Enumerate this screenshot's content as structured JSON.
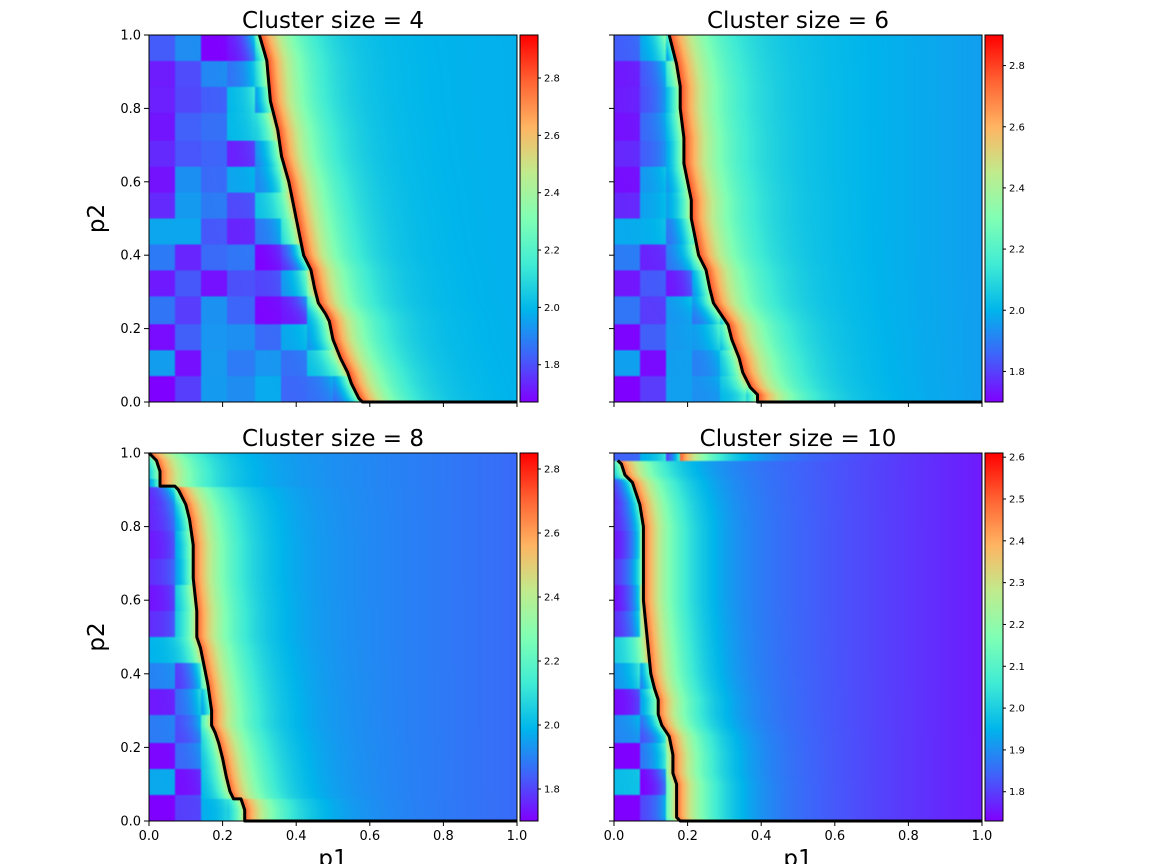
{
  "colormap": "rainbow",
  "colors": {
    "boundary_line": "#000000",
    "cmap_stops": [
      "#8000ff",
      "#4062fa",
      "#00b5eb",
      "#40ecd4",
      "#80ffb4",
      "#c0eb8d",
      "#ffb462",
      "#ff6232",
      "#ff0000"
    ]
  },
  "chart_data": [
    {
      "type": "heatmap",
      "title": "Cluster size = 4",
      "xlabel": "",
      "ylabel": "p2",
      "xlim": [
        0,
        1
      ],
      "ylim": [
        0,
        1
      ],
      "x_ticks": [
        "0.0",
        "0.2",
        "0.4",
        "0.6",
        "0.8",
        "1.0"
      ],
      "x_tick_labels_shown": false,
      "y_ticks": [
        "0.0",
        "0.2",
        "0.4",
        "0.6",
        "0.8",
        "1.0"
      ],
      "y_tick_labels_shown": true,
      "colorbar": {
        "range": [
          1.67,
          2.95
        ],
        "ticks": [
          "1.8",
          "2.0",
          "2.2",
          "2.4",
          "2.6",
          "2.8"
        ]
      },
      "field": {
        "low": 1.78,
        "peak": 2.85,
        "far": 2.0,
        "far_end": 1.98
      },
      "boundary": [
        [
          0.3,
          1.0
        ],
        [
          0.32,
          0.93
        ],
        [
          0.33,
          0.82
        ],
        [
          0.35,
          0.74
        ],
        [
          0.36,
          0.67
        ],
        [
          0.38,
          0.6
        ],
        [
          0.39,
          0.55
        ],
        [
          0.4,
          0.5
        ],
        [
          0.41,
          0.45
        ],
        [
          0.42,
          0.4
        ],
        [
          0.44,
          0.36
        ],
        [
          0.45,
          0.31
        ],
        [
          0.46,
          0.27
        ],
        [
          0.48,
          0.24
        ],
        [
          0.49,
          0.22
        ],
        [
          0.5,
          0.17
        ],
        [
          0.52,
          0.12
        ],
        [
          0.54,
          0.08
        ],
        [
          0.55,
          0.05
        ],
        [
          0.57,
          0.01
        ],
        [
          0.58,
          0.0
        ],
        [
          1.0,
          0.0
        ]
      ]
    },
    {
      "type": "heatmap",
      "title": "Cluster size = 6",
      "xlabel": "",
      "ylabel": "",
      "xlim": [
        0,
        1
      ],
      "ylim": [
        0,
        1
      ],
      "x_ticks": [
        "0.0",
        "0.2",
        "0.4",
        "0.6",
        "0.8",
        "1.0"
      ],
      "x_tick_labels_shown": false,
      "y_ticks": [
        "0.0",
        "0.2",
        "0.4",
        "0.6",
        "0.8",
        "1.0"
      ],
      "y_tick_labels_shown": false,
      "colorbar": {
        "range": [
          1.7,
          2.9
        ],
        "ticks": [
          "1.8",
          "2.0",
          "2.2",
          "2.4",
          "2.6",
          "2.8"
        ]
      },
      "field": {
        "low": 1.8,
        "peak": 2.8,
        "far": 2.08,
        "far_end": 1.96
      },
      "boundary": [
        [
          0.15,
          1.0
        ],
        [
          0.16,
          0.96
        ],
        [
          0.17,
          0.92
        ],
        [
          0.18,
          0.86
        ],
        [
          0.18,
          0.8
        ],
        [
          0.19,
          0.72
        ],
        [
          0.19,
          0.65
        ],
        [
          0.2,
          0.6
        ],
        [
          0.21,
          0.55
        ],
        [
          0.21,
          0.5
        ],
        [
          0.22,
          0.45
        ],
        [
          0.23,
          0.4
        ],
        [
          0.25,
          0.36
        ],
        [
          0.26,
          0.31
        ],
        [
          0.27,
          0.27
        ],
        [
          0.29,
          0.24
        ],
        [
          0.31,
          0.21
        ],
        [
          0.32,
          0.17
        ],
        [
          0.34,
          0.12
        ],
        [
          0.35,
          0.08
        ],
        [
          0.37,
          0.04
        ],
        [
          0.39,
          0.02
        ],
        [
          0.39,
          0.0
        ],
        [
          1.0,
          0.0
        ]
      ]
    },
    {
      "type": "heatmap",
      "title": "Cluster size = 8",
      "xlabel": "p1",
      "ylabel": "p2",
      "xlim": [
        0,
        1
      ],
      "ylim": [
        0,
        1
      ],
      "x_ticks": [
        "0.0",
        "0.2",
        "0.4",
        "0.6",
        "0.8",
        "1.0"
      ],
      "x_tick_labels_shown": true,
      "y_ticks": [
        "0.0",
        "0.2",
        "0.4",
        "0.6",
        "0.8",
        "1.0"
      ],
      "y_tick_labels_shown": true,
      "colorbar": {
        "range": [
          1.7,
          2.85
        ],
        "ticks": [
          "1.8",
          "2.0",
          "2.2",
          "2.4",
          "2.6",
          "2.8"
        ]
      },
      "field": {
        "low": 1.8,
        "peak": 2.72,
        "far": 1.98,
        "far_end": 1.86
      },
      "boundary": [
        [
          0.0,
          1.0
        ],
        [
          0.02,
          0.98
        ],
        [
          0.03,
          0.95
        ],
        [
          0.03,
          0.91
        ],
        [
          0.07,
          0.91
        ],
        [
          0.08,
          0.9
        ],
        [
          0.09,
          0.88
        ],
        [
          0.1,
          0.86
        ],
        [
          0.11,
          0.82
        ],
        [
          0.12,
          0.75
        ],
        [
          0.12,
          0.66
        ],
        [
          0.13,
          0.57
        ],
        [
          0.13,
          0.5
        ],
        [
          0.14,
          0.47
        ],
        [
          0.15,
          0.42
        ],
        [
          0.16,
          0.37
        ],
        [
          0.17,
          0.3
        ],
        [
          0.17,
          0.26
        ],
        [
          0.18,
          0.24
        ],
        [
          0.19,
          0.21
        ],
        [
          0.2,
          0.17
        ],
        [
          0.21,
          0.12
        ],
        [
          0.22,
          0.08
        ],
        [
          0.23,
          0.06
        ],
        [
          0.25,
          0.06
        ],
        [
          0.26,
          0.03
        ],
        [
          0.26,
          0.0
        ],
        [
          1.0,
          0.0
        ]
      ]
    },
    {
      "type": "heatmap",
      "title": "Cluster size = 10",
      "xlabel": "p1",
      "ylabel": "",
      "xlim": [
        0,
        1
      ],
      "ylim": [
        0,
        1
      ],
      "x_ticks": [
        "0.0",
        "0.2",
        "0.4",
        "0.6",
        "0.8",
        "1.0"
      ],
      "x_tick_labels_shown": true,
      "y_ticks": [
        "0.0",
        "0.2",
        "0.4",
        "0.6",
        "0.8",
        "1.0"
      ],
      "y_tick_labels_shown": false,
      "colorbar": {
        "range": [
          1.73,
          2.61
        ],
        "ticks": [
          "1.8",
          "1.9",
          "2.0",
          "2.1",
          "2.2",
          "2.3",
          "2.4",
          "2.5",
          "2.6"
        ]
      },
      "field": {
        "low": 1.8,
        "peak": 2.5,
        "far": 1.92,
        "far_end": 1.76
      },
      "boundary": [
        [
          0.01,
          0.98
        ],
        [
          0.02,
          0.97
        ],
        [
          0.03,
          0.94
        ],
        [
          0.05,
          0.92
        ],
        [
          0.06,
          0.89
        ],
        [
          0.07,
          0.86
        ],
        [
          0.08,
          0.8
        ],
        [
          0.08,
          0.7
        ],
        [
          0.08,
          0.6
        ],
        [
          0.09,
          0.5
        ],
        [
          0.1,
          0.4
        ],
        [
          0.11,
          0.36
        ],
        [
          0.12,
          0.33
        ],
        [
          0.12,
          0.29
        ],
        [
          0.13,
          0.26
        ],
        [
          0.15,
          0.23
        ],
        [
          0.16,
          0.18
        ],
        [
          0.16,
          0.13
        ],
        [
          0.17,
          0.1
        ],
        [
          0.17,
          0.05
        ],
        [
          0.17,
          0.01
        ],
        [
          0.18,
          0.0
        ],
        [
          1.0,
          0.0
        ]
      ]
    }
  ]
}
